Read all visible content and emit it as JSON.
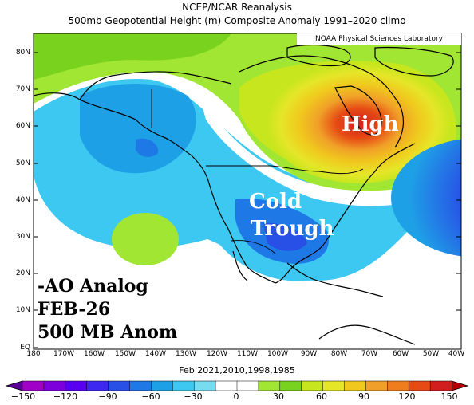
{
  "title_line1": "NCEP/NCAR Reanalysis",
  "title_line2": "500mb Geopotential Height (m) Composite Anomaly 1991–2020 climo",
  "credit": "NOAA Physical Sciences Laboratory",
  "lat_labels": [
    "80N",
    "70N",
    "60N",
    "50N",
    "40N",
    "30N",
    "20N",
    "10N",
    "EQ"
  ],
  "lon_labels": [
    "180",
    "170W",
    "160W",
    "150W",
    "140W",
    "130W",
    "120W",
    "110W",
    "100W",
    "90W",
    "80W",
    "70W",
    "60W",
    "50W",
    "40W"
  ],
  "composite_caption": "Feb 2021,2010,1998,1985",
  "annotations": {
    "high": "High",
    "cold_line1": "Cold",
    "cold_line2": "Trough",
    "analog_line1": "-AO Analog",
    "analog_line2": "FEB-26",
    "analog_line3": "500 MB Anom"
  },
  "colorbar": {
    "labels": [
      "−150",
      "−120",
      "−90",
      "−60",
      "−30",
      "0",
      "30",
      "60",
      "90",
      "120",
      "150"
    ],
    "colors": [
      "#a000c8",
      "#7d00dc",
      "#5a00f0",
      "#3c28f0",
      "#2850e6",
      "#1e78e6",
      "#1ea0e6",
      "#3cc8f0",
      "#78dcf0",
      "#ffffff",
      "#ffffff",
      "#a0e632",
      "#78d21e",
      "#c8e61e",
      "#e6e628",
      "#f0c81e",
      "#f0a028",
      "#ef7d1e",
      "#e64b14",
      "#d21e1e"
    ]
  }
}
